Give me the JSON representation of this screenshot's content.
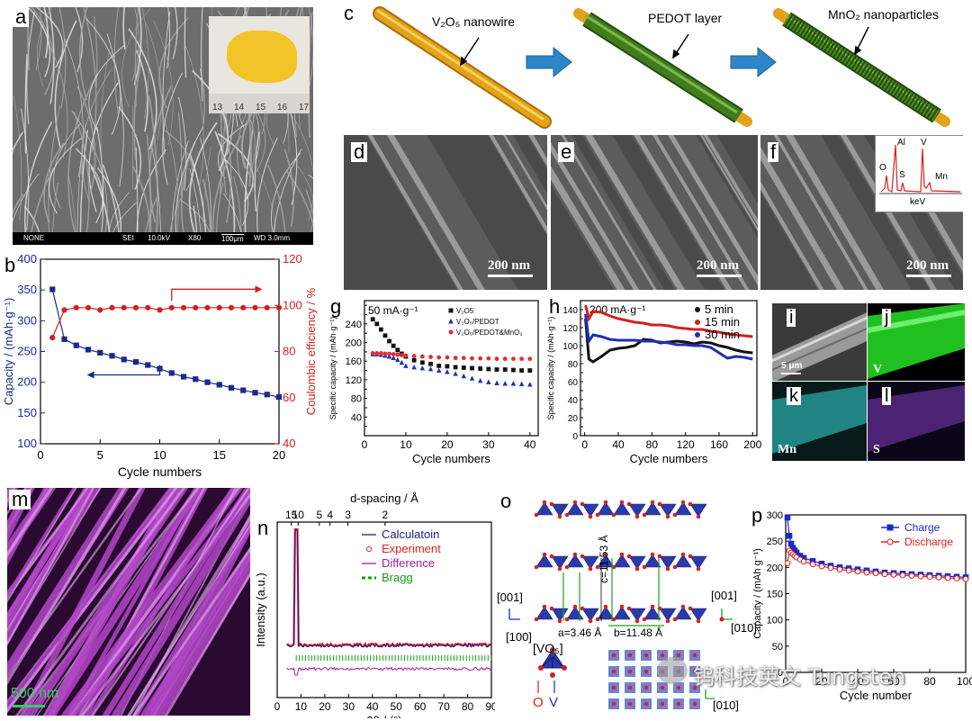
{
  "figure": {
    "labels": {
      "a": "a",
      "b": "b",
      "c": "c",
      "d": "d",
      "e": "e",
      "f": "f",
      "g": "g",
      "h": "h",
      "i": "i",
      "j": "j",
      "k": "k",
      "l": "l",
      "m": "m",
      "n": "n",
      "o": "o",
      "p": "p"
    }
  },
  "panel_a": {
    "infobar": [
      "NONE",
      "SEI",
      "10.0kV",
      "X80",
      "100μm",
      "WD 3.0mm"
    ],
    "ruler_ticks": [
      "13",
      "14",
      "15",
      "16",
      "17"
    ],
    "colors": {
      "sample": "#f2c427",
      "sem": "#8a8a8a"
    }
  },
  "panel_c": {
    "labels": {
      "nanowire": "V₂O₅ nanowire",
      "pedot": "PEDOT layer",
      "mno2": "MnO₂ nanoparticles"
    },
    "colors": {
      "wire": "#e3a21a",
      "pedot": "#3f7d1e",
      "arrow": "#2d86c9"
    }
  },
  "panel_d": {
    "scale": "200 nm"
  },
  "panel_e": {
    "scale": "200 nm"
  },
  "panel_f": {
    "scale": "200 nm",
    "eds": {
      "peaks": [
        "O",
        "Al",
        "S",
        "V",
        "Mn"
      ],
      "xlabel": "keV"
    }
  },
  "panel_i": {
    "scale": "5 μm"
  },
  "panel_j": {
    "element": "V",
    "color": "#20c020"
  },
  "panel_k": {
    "element": "Mn",
    "color": "#2aa9a6"
  },
  "panel_l": {
    "element": "S",
    "color": "#5a2a8a"
  },
  "panel_m": {
    "scale": "500 nm",
    "color": "#b347c8"
  },
  "panel_o": {
    "labels": {
      "a": "a=3.46 Å",
      "b": "b=11.48 Å",
      "c": "c=11.53 Å",
      "vo5": "[VO₅]",
      "o": "O",
      "v": "V",
      "dir001a": "[001]",
      "dir100": "[100]",
      "dir001b": "[001]",
      "dir010a": "[010]",
      "dir010b": "[010]"
    }
  },
  "watermark": "钨科技英文 Tungsten",
  "chart_data": [
    {
      "id": "b",
      "type": "line",
      "xlabel": "Cycle numbers",
      "ylabel": "Capacity / (mAh·g⁻¹)",
      "y2label": "Coulombic efficiency / %",
      "xlim": [
        0,
        20
      ],
      "ylim": [
        100,
        400
      ],
      "y2lim": [
        40,
        120
      ],
      "xticks": [
        0,
        5,
        10,
        15,
        20
      ],
      "yticks": [
        100,
        150,
        200,
        250,
        300,
        350,
        400
      ],
      "y2ticks": [
        40,
        60,
        80,
        100,
        120
      ],
      "series": [
        {
          "name": "Capacity",
          "axis": "left",
          "color": "#1a2a8c",
          "marker": "square",
          "x": [
            1,
            2,
            3,
            4,
            5,
            6,
            7,
            8,
            9,
            10,
            11,
            12,
            13,
            14,
            15,
            16,
            17,
            18,
            19,
            20
          ],
          "values": [
            351,
            270,
            260,
            253,
            248,
            243,
            237,
            233,
            228,
            222,
            215,
            209,
            205,
            200,
            196,
            191,
            187,
            183,
            180,
            176
          ]
        },
        {
          "name": "Coulombic efficiency",
          "axis": "right",
          "color": "#d42020",
          "marker": "circle",
          "x": [
            1,
            2,
            3,
            4,
            5,
            6,
            7,
            8,
            9,
            10,
            11,
            12,
            13,
            14,
            15,
            16,
            17,
            18,
            19,
            20
          ],
          "values": [
            86,
            98,
            99,
            99,
            98,
            99,
            99,
            99,
            99,
            98,
            99,
            99,
            99,
            99,
            99,
            99,
            99,
            99,
            99,
            99
          ]
        }
      ]
    },
    {
      "id": "g",
      "type": "scatter",
      "annotation": "50 mA·g⁻¹",
      "xlabel": "Cycle numbers",
      "ylabel": "Specific capacity / (mAh·g⁻¹)",
      "xlim": [
        0,
        42
      ],
      "ylim": [
        0,
        290
      ],
      "xticks": [
        0,
        10,
        20,
        30,
        40
      ],
      "yticks": [
        0,
        20,
        40,
        60,
        80,
        100,
        120,
        140,
        160,
        180,
        200,
        220,
        240,
        260,
        280
      ],
      "series": [
        {
          "name": "V₂O5",
          "color": "#111111",
          "marker": "square",
          "x": [
            2,
            3,
            4,
            5,
            6,
            7,
            8,
            9,
            10,
            12,
            14,
            16,
            18,
            20,
            22,
            24,
            26,
            28,
            30,
            32,
            34,
            36,
            38,
            40
          ],
          "values": [
            250,
            240,
            228,
            215,
            203,
            193,
            184,
            176,
            170,
            162,
            157,
            154,
            150,
            149,
            147,
            146,
            145,
            144,
            143,
            142,
            142,
            141,
            140,
            140
          ]
        },
        {
          "name": "V₂O₅/PEDOT",
          "color": "#1f2fb5",
          "marker": "triangle",
          "x": [
            2,
            3,
            4,
            5,
            6,
            7,
            8,
            9,
            10,
            12,
            14,
            16,
            18,
            20,
            22,
            24,
            26,
            28,
            30,
            32,
            34,
            36,
            38,
            40
          ],
          "values": [
            175,
            175,
            174,
            172,
            170,
            167,
            163,
            157,
            150,
            147,
            145,
            143,
            140,
            137,
            133,
            128,
            123,
            118,
            115,
            113,
            112,
            112,
            111,
            110
          ]
        },
        {
          "name": "V₂O₅/PEDOT&MnO₂",
          "color": "#e03030",
          "marker": "star",
          "x": [
            2,
            3,
            4,
            5,
            6,
            7,
            8,
            9,
            10,
            12,
            14,
            16,
            18,
            20,
            22,
            24,
            26,
            28,
            30,
            32,
            34,
            36,
            38,
            40
          ],
          "values": [
            177,
            177,
            177,
            176,
            176,
            175,
            174,
            173,
            172,
            171,
            170,
            169,
            168,
            168,
            167,
            167,
            166,
            166,
            166,
            165,
            165,
            165,
            165,
            165
          ]
        }
      ]
    },
    {
      "id": "h",
      "type": "line",
      "annotation": "200 mA·g⁻¹",
      "xlabel": "Cycle numbers",
      "ylabel": "Specific capacity / (mAh·g⁻¹)",
      "xlim": [
        -5,
        205
      ],
      "ylim": [
        0,
        150
      ],
      "xticks": [
        0,
        40,
        80,
        120,
        160,
        200
      ],
      "yticks": [
        0,
        10,
        20,
        30,
        40,
        50,
        60,
        70,
        80,
        90,
        100,
        110,
        120,
        130,
        140
      ],
      "series": [
        {
          "name": "5 min",
          "color": "#111111",
          "x": [
            1,
            5,
            10,
            20,
            30,
            40,
            50,
            60,
            70,
            80,
            90,
            100,
            110,
            120,
            130,
            140,
            150,
            160,
            170,
            180,
            190,
            200
          ],
          "values": [
            130,
            85,
            82,
            88,
            95,
            97,
            98,
            100,
            107,
            106,
            103,
            104,
            105,
            104,
            102,
            104,
            103,
            100,
            98,
            95,
            93,
            92
          ]
        },
        {
          "name": "15 min",
          "color": "#d42020",
          "x": [
            1,
            5,
            10,
            20,
            30,
            40,
            50,
            60,
            70,
            80,
            90,
            100,
            110,
            120,
            130,
            140,
            150,
            160,
            170,
            180,
            190,
            200
          ],
          "values": [
            145,
            130,
            138,
            137,
            133,
            130,
            128,
            126,
            125,
            123,
            123,
            122,
            120,
            119,
            118,
            118,
            116,
            115,
            113,
            112,
            111,
            110
          ]
        },
        {
          "name": "30 min",
          "color": "#1f2fb5",
          "x": [
            1,
            5,
            10,
            20,
            30,
            40,
            50,
            60,
            70,
            80,
            90,
            100,
            110,
            120,
            130,
            140,
            150,
            160,
            170,
            180,
            190,
            200
          ],
          "values": [
            135,
            105,
            112,
            110,
            107,
            106,
            106,
            106,
            105,
            105,
            104,
            103,
            101,
            101,
            100,
            100,
            98,
            92,
            86,
            88,
            87,
            85
          ]
        }
      ]
    },
    {
      "id": "n",
      "type": "line",
      "xlabel": "2θ / (°)",
      "ylabel": "Intensity (a.u.)",
      "top_axis_label": "d-spacing / Å",
      "xlim": [
        0,
        90
      ],
      "xticks": [
        0,
        10,
        20,
        30,
        40,
        50,
        60,
        70,
        80,
        90
      ],
      "top_ticks": [
        "15",
        "10",
        "5",
        "4",
        "3",
        "2"
      ],
      "series": [
        {
          "name": "Calculatoin",
          "color": "#1a1aa0"
        },
        {
          "name": "Experiment",
          "color": "#e02020"
        },
        {
          "name": "Difference",
          "color": "#a020a0"
        },
        {
          "name": "Bragg",
          "color": "#10a010"
        }
      ],
      "main_peak_2theta": 8.1
    },
    {
      "id": "p",
      "type": "line",
      "xlabel": "Cycle number",
      "ylabel": "Capacity / (mAh g⁻¹)",
      "xlim": [
        0,
        100
      ],
      "ylim": [
        0,
        300
      ],
      "xticks": [
        0,
        20,
        40,
        60,
        80,
        100
      ],
      "yticks": [
        0,
        50,
        100,
        150,
        200,
        250,
        300
      ],
      "series": [
        {
          "name": "Charge",
          "color": "#1a2ac8",
          "marker": "square",
          "x": [
            1,
            2,
            3,
            4,
            5,
            6,
            8,
            10,
            15,
            20,
            25,
            30,
            35,
            40,
            45,
            50,
            55,
            60,
            65,
            70,
            75,
            80,
            85,
            90,
            95,
            100
          ],
          "values": [
            295,
            260,
            245,
            237,
            232,
            228,
            222,
            218,
            212,
            207,
            203,
            200,
            198,
            196,
            194,
            192,
            190,
            189,
            188,
            187,
            186,
            185,
            184,
            183,
            182,
            181
          ]
        },
        {
          "name": "Discharge",
          "color": "#e02020",
          "marker": "circle",
          "x": [
            1,
            2,
            3,
            4,
            5,
            6,
            8,
            10,
            15,
            20,
            25,
            30,
            35,
            40,
            45,
            50,
            55,
            60,
            65,
            70,
            75,
            80,
            85,
            90,
            95,
            100
          ],
          "values": [
            208,
            232,
            228,
            225,
            222,
            219,
            215,
            211,
            206,
            202,
            199,
            196,
            194,
            192,
            190,
            189,
            187,
            186,
            185,
            184,
            183,
            182,
            181,
            180,
            179,
            178
          ]
        }
      ]
    }
  ]
}
